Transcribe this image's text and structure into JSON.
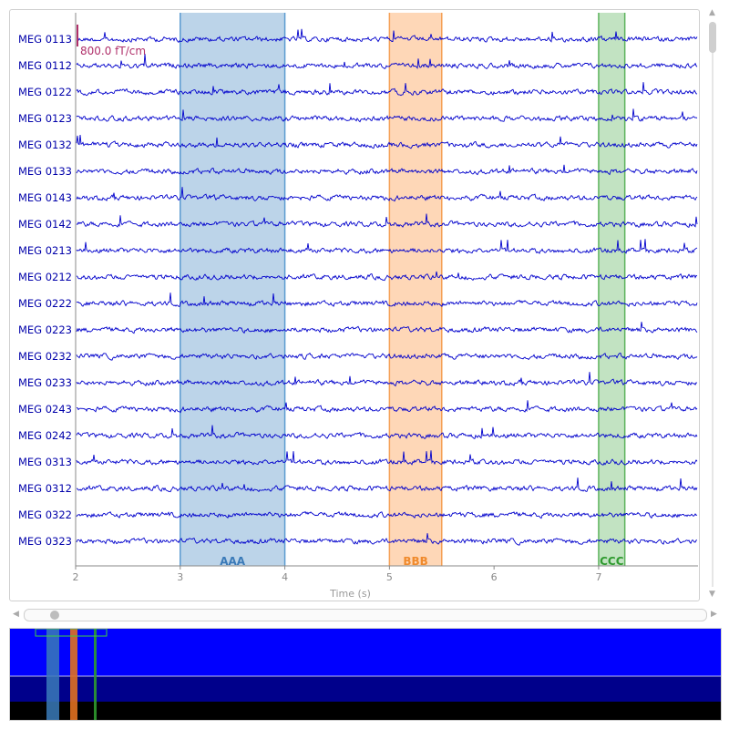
{
  "channels": [
    "MEG 0113",
    "MEG 0112",
    "MEG 0122",
    "MEG 0123",
    "MEG 0132",
    "MEG 0133",
    "MEG 0143",
    "MEG 0142",
    "MEG 0213",
    "MEG 0212",
    "MEG 0222",
    "MEG 0223",
    "MEG 0232",
    "MEG 0233",
    "MEG 0243",
    "MEG 0242",
    "MEG 0313",
    "MEG 0312",
    "MEG 0322",
    "MEG 0323"
  ],
  "scale_bar": {
    "label": "800.0 fT/cm",
    "color": "#b0306a"
  },
  "trace_color": "#0000cc",
  "annotations": [
    {
      "label": "AAA",
      "start": 3.0,
      "end": 4.0,
      "fill": "#bcd4e9",
      "edge": "#5a9bd0",
      "text_color": "#3a7ab8"
    },
    {
      "label": "BBB",
      "start": 5.0,
      "end": 5.5,
      "fill": "#fed7b7",
      "edge": "#f5a055",
      "text_color": "#f08a2c"
    },
    {
      "label": "CCC",
      "start": 7.0,
      "end": 7.25,
      "fill": "#c2e3c2",
      "edge": "#5db35d",
      "text_color": "#2f9a2f"
    }
  ],
  "time_axis": {
    "label": "Time (s)",
    "ticks": [
      "2",
      "3",
      "4",
      "5",
      "6",
      "7"
    ],
    "range": [
      2,
      7.95
    ]
  },
  "overview": {
    "fill_top": "#0000ff",
    "fill_bottom": "#00008b",
    "fill_base": "#000000",
    "marker_colors": [
      "#3a7ab8",
      "#e07020",
      "#2f9a2f"
    ]
  }
}
